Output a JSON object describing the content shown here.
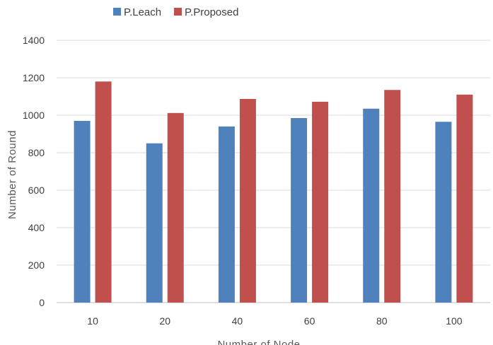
{
  "chart_data": {
    "type": "bar",
    "title": "",
    "xlabel": "Number of Node",
    "ylabel": "Number of Round",
    "categories": [
      "10",
      "20",
      "40",
      "60",
      "80",
      "100"
    ],
    "series": [
      {
        "name": "P.Leach",
        "color": "#4f81bd",
        "values": [
          970,
          850,
          940,
          985,
          1035,
          965
        ]
      },
      {
        "name": "P.Proposed",
        "color": "#c0504d",
        "values": [
          1180,
          1012,
          1087,
          1072,
          1135,
          1110
        ]
      }
    ],
    "ylim": [
      0,
      1400
    ],
    "yticks": [
      0,
      200,
      400,
      600,
      800,
      1000,
      1200,
      1400
    ],
    "grid": true,
    "legend": "top-left"
  }
}
